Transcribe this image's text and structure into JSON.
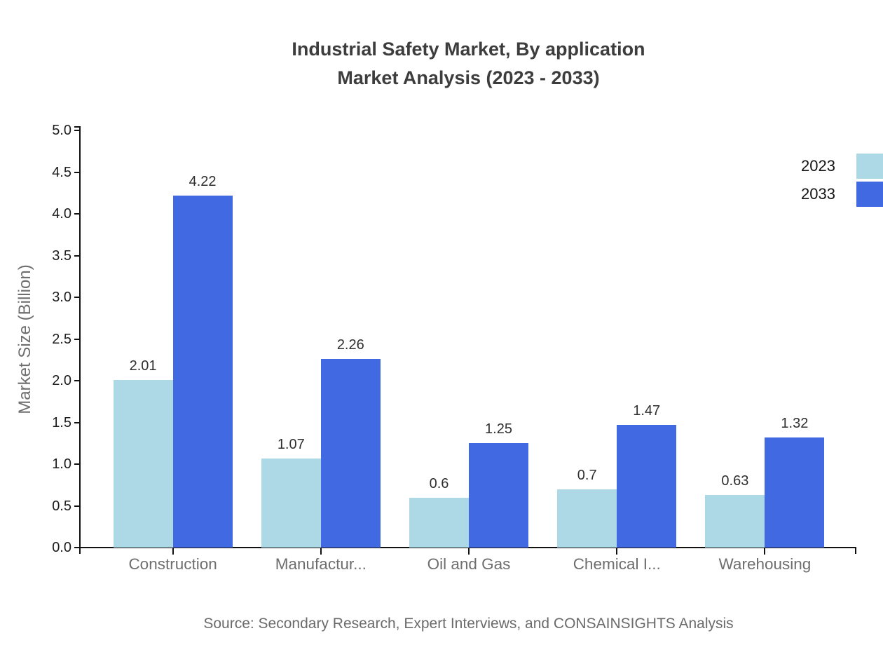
{
  "title": {
    "line1": "Industrial Safety Market, By application",
    "line2": "Market Analysis (2023 - 2033)"
  },
  "source": "Source: Secondary Research, Expert Interviews, and CONSAINSIGHTS Analysis",
  "legend": [
    {
      "label": "2023",
      "color": "#add8e6"
    },
    {
      "label": "2033",
      "color": "#4169e1"
    }
  ],
  "colors": {
    "series_2023": "#add8e6",
    "series_2033": "#4169e1",
    "axis": "#111111",
    "title_text": "#3d3d3d",
    "category_text": "#6e6e6e",
    "source_text": "#6b6b6b"
  },
  "chart_data": {
    "type": "bar",
    "title": "Industrial Safety Market, By application Market Analysis (2023 - 2033)",
    "categories": [
      "Construction",
      "Manufactur...",
      "Oil and Gas",
      "Chemical I...",
      "Warehousing"
    ],
    "series": [
      {
        "name": "2023",
        "color": "#add8e6",
        "values": [
          2.01,
          1.07,
          0.6,
          0.7,
          0.63
        ],
        "labels": [
          "2.01",
          "1.07",
          "0.6",
          "0.7",
          "0.63"
        ]
      },
      {
        "name": "2033",
        "color": "#4169e1",
        "values": [
          4.22,
          2.26,
          1.25,
          1.47,
          1.32
        ],
        "labels": [
          "4.22",
          "2.26",
          "1.25",
          "1.47",
          "1.32"
        ]
      }
    ],
    "xlabel": "",
    "ylabel": "Market Size (Billion)",
    "ylim": [
      0,
      5
    ],
    "ytick_step": 0.5,
    "ytick_labels": [
      "0.0",
      "0.5",
      "1.0",
      "1.5",
      "2.0",
      "2.5",
      "3.0",
      "3.5",
      "4.0",
      "4.5",
      "5.0"
    ],
    "grid": false,
    "legend_position": "top-right"
  }
}
